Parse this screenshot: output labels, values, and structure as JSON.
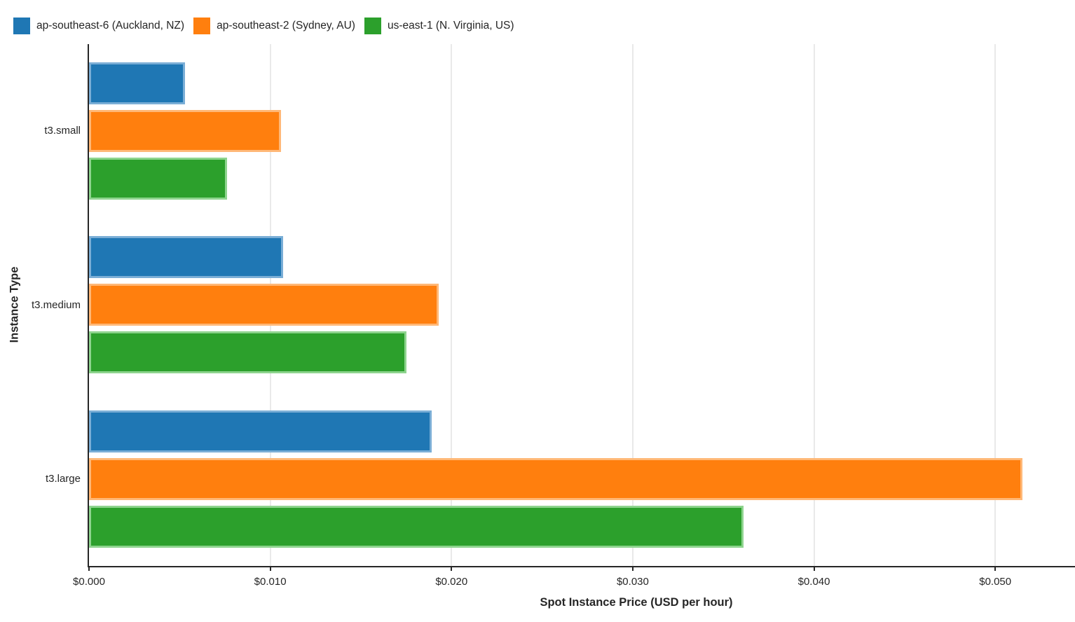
{
  "chart_data": {
    "type": "bar",
    "orientation": "horizontal",
    "title": "",
    "xlabel": "Spot Instance Price (USD per hour)",
    "ylabel": "Instance Type",
    "categories": [
      "t3.small",
      "t3.medium",
      "t3.large"
    ],
    "series": [
      {
        "name": "ap-southeast-6 (Auckland, NZ)",
        "color": "#1f77b4",
        "edge_color": "#7aaed6",
        "values": [
          0.0053,
          0.0107,
          0.0189
        ]
      },
      {
        "name": "ap-southeast-2 (Sydney, AU)",
        "color": "#ff7f0e",
        "edge_color": "#ffb877",
        "values": [
          0.0106,
          0.0193,
          0.0515
        ]
      },
      {
        "name": "us-east-1 (N. Virginia, US)",
        "color": "#2ca02c",
        "edge_color": "#8ed48e",
        "values": [
          0.0076,
          0.0175,
          0.0361
        ]
      }
    ],
    "xlim": [
      0,
      0.0544
    ],
    "x_ticks": [
      {
        "value": 0.0,
        "label": "$0.000"
      },
      {
        "value": 0.01,
        "label": "$0.010"
      },
      {
        "value": 0.02,
        "label": "$0.020"
      },
      {
        "value": 0.03,
        "label": "$0.030"
      },
      {
        "value": 0.04,
        "label": "$0.040"
      },
      {
        "value": 0.05,
        "label": "$0.050"
      }
    ],
    "grid": true,
    "legend_position": "top-left"
  },
  "colors": {
    "background": "#ffffff",
    "axis_line": "#262626",
    "gridline": "#e9e9e9",
    "text": "#262626"
  }
}
